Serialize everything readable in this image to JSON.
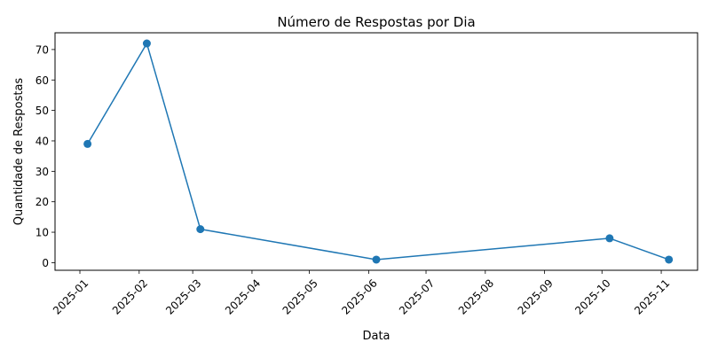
{
  "chart_data": {
    "type": "line",
    "title": "Número de Respostas por Dia",
    "xlabel": "Data",
    "ylabel": "Quantidade de Respostas",
    "x": [
      "2025-01-05",
      "2025-02-05",
      "2025-03-05",
      "2025-06-05",
      "2025-10-05",
      "2025-11-05"
    ],
    "series": [
      {
        "values": [
          39,
          72,
          11,
          1,
          8,
          1
        ],
        "color": "#1f77b4",
        "marker": "circle"
      }
    ],
    "xlim": [
      "2024-12-19",
      "2025-11-20"
    ],
    "ylim": [
      -2.5,
      75.5
    ],
    "x_ticks": [
      "2025-01",
      "2025-02",
      "2025-03",
      "2025-04",
      "2025-05",
      "2025-06",
      "2025-07",
      "2025-08",
      "2025-09",
      "2025-10",
      "2025-11"
    ],
    "y_ticks": [
      0,
      10,
      20,
      30,
      40,
      50,
      60,
      70
    ],
    "x_tick_rotation": 45,
    "grid": false,
    "legend": "none"
  }
}
